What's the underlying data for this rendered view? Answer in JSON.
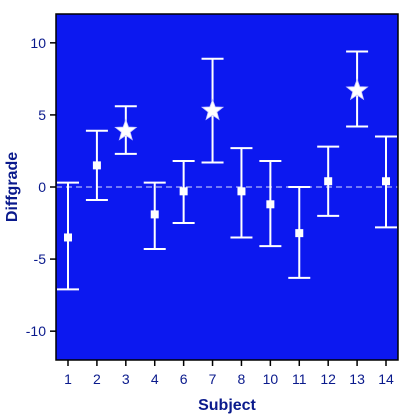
{
  "chart_data": {
    "type": "scatter",
    "xlabel": "Subject",
    "ylabel": "Diffgrade",
    "ylim": [
      -12,
      12
    ],
    "y_ticks": [
      10,
      5,
      0,
      -5,
      -10
    ],
    "reference_line": 0,
    "categories": [
      "1",
      "2",
      "3",
      "4",
      "6",
      "7",
      "8",
      "10",
      "11",
      "12",
      "13",
      "14"
    ],
    "points": [
      {
        "subject": "1",
        "mean": -3.5,
        "lower": -7.1,
        "upper": 0.3,
        "marker": "square"
      },
      {
        "subject": "2",
        "mean": 1.5,
        "lower": -0.9,
        "upper": 3.9,
        "marker": "square"
      },
      {
        "subject": "3",
        "mean": 3.9,
        "lower": 2.3,
        "upper": 5.6,
        "marker": "star"
      },
      {
        "subject": "4",
        "mean": -1.9,
        "lower": -4.3,
        "upper": 0.3,
        "marker": "square"
      },
      {
        "subject": "6",
        "mean": -0.3,
        "lower": -2.5,
        "upper": 1.8,
        "marker": "square"
      },
      {
        "subject": "7",
        "mean": 5.3,
        "lower": 1.7,
        "upper": 8.9,
        "marker": "star"
      },
      {
        "subject": "8",
        "mean": -0.3,
        "lower": -3.5,
        "upper": 2.7,
        "marker": "square"
      },
      {
        "subject": "10",
        "mean": -1.2,
        "lower": -4.1,
        "upper": 1.8,
        "marker": "square"
      },
      {
        "subject": "11",
        "mean": -3.2,
        "lower": -6.3,
        "upper": 0.0,
        "marker": "square"
      },
      {
        "subject": "12",
        "mean": 0.4,
        "lower": -2.0,
        "upper": 2.8,
        "marker": "square"
      },
      {
        "subject": "13",
        "mean": 6.7,
        "lower": 4.2,
        "upper": 9.4,
        "marker": "star"
      },
      {
        "subject": "14",
        "mean": 0.4,
        "lower": -2.8,
        "upper": 3.5,
        "marker": "square"
      }
    ],
    "colors": {
      "plot_background": "#0c18f0",
      "marks": "#ffffff",
      "axis_text": "#0a1a8c",
      "frame": "#000000"
    },
    "grid": false,
    "legend": "none"
  }
}
